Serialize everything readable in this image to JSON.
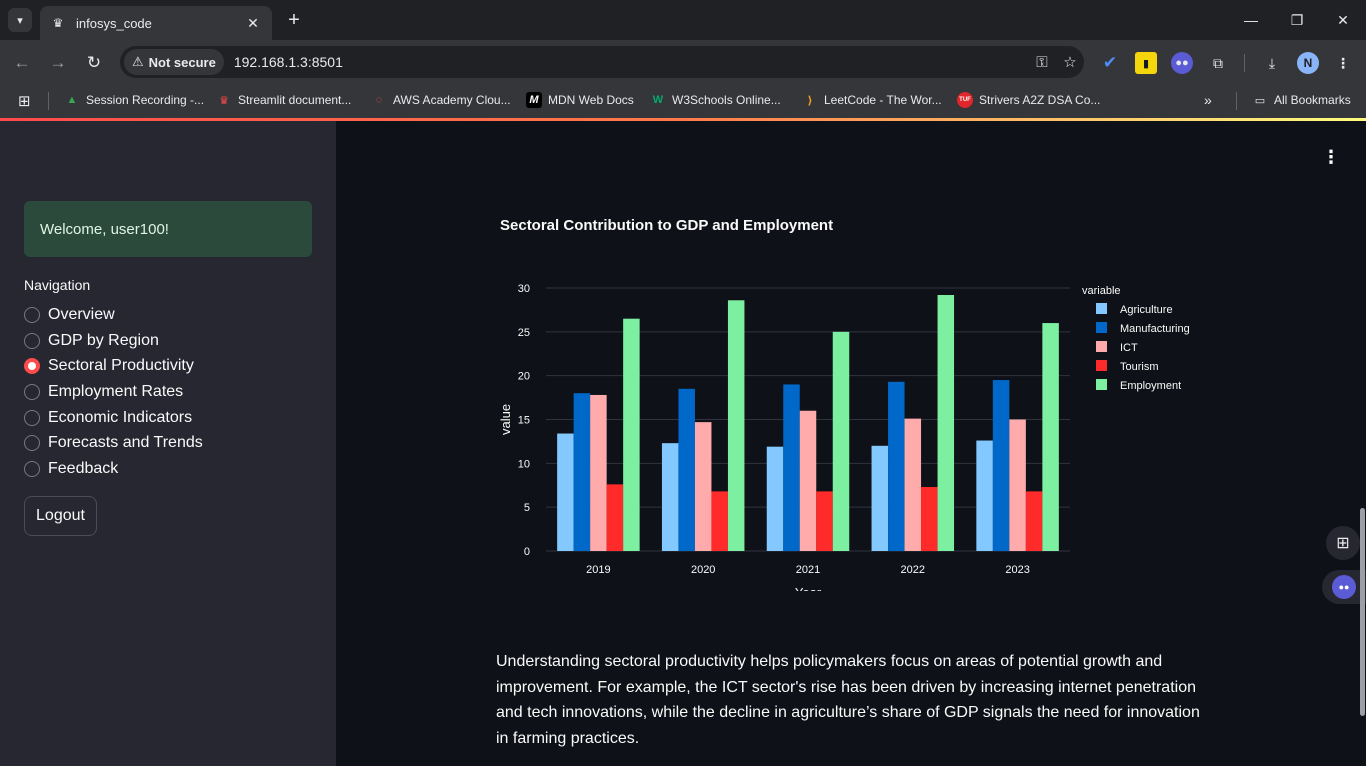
{
  "browser": {
    "tab_title": "infosys_code",
    "url_security": "Not secure",
    "url": "192.168.1.3:8501",
    "profile_initial": "N",
    "bookmarks": [
      {
        "label": "Session Recording -...",
        "icon": "drive-icon",
        "color": "#34a853"
      },
      {
        "label": "Streamlit document...",
        "icon": "streamlit-icon",
        "color": "#ff4b4b"
      },
      {
        "label": "AWS Academy Clou...",
        "icon": "aws-icon",
        "color": "#ff4b4b"
      },
      {
        "label": "MDN Web Docs",
        "icon": "mdn-icon",
        "color": "#ffffff"
      },
      {
        "label": "W3Schools Online...",
        "icon": "w3schools-icon",
        "color": "#04aa6d"
      },
      {
        "label": "LeetCode - The Wor...",
        "icon": "leetcode-icon",
        "color": "#ffa116"
      },
      {
        "label": "Strivers A2Z DSA Co...",
        "icon": "tuf-icon",
        "color": "#e0262b"
      }
    ],
    "all_bookmarks": "All Bookmarks"
  },
  "sidebar": {
    "welcome": "Welcome, user100!",
    "nav_title": "Navigation",
    "items": [
      {
        "label": "Overview",
        "selected": false
      },
      {
        "label": "GDP by Region",
        "selected": false
      },
      {
        "label": "Sectoral Productivity",
        "selected": true
      },
      {
        "label": "Employment Rates",
        "selected": false
      },
      {
        "label": "Economic Indicators",
        "selected": false
      },
      {
        "label": "Forecasts and Trends",
        "selected": false
      },
      {
        "label": "Feedback",
        "selected": false
      }
    ],
    "logout": "Logout"
  },
  "main": {
    "chart_title": "Sectoral Contribution to GDP and Employment",
    "description": "Understanding sectoral productivity helps policymakers focus on areas of potential growth and improvement. For example, the ICT sector's rise has been driven by increasing internet penetration and tech innovations, while the decline in agriculture’s share of GDP signals the need for innovation in farming practices."
  },
  "chart_data": {
    "type": "bar",
    "title": "Sectoral Contribution to GDP and Employment",
    "xlabel": "Year",
    "ylabel": "value",
    "legend_title": "variable",
    "legend_position": "right",
    "categories": [
      "2019",
      "2020",
      "2021",
      "2022",
      "2023"
    ],
    "ylim": [
      0,
      30
    ],
    "yticks": [
      0,
      5,
      10,
      15,
      20,
      25,
      30
    ],
    "grid": true,
    "series": [
      {
        "name": "Agriculture",
        "color": "#83c9ff",
        "values": [
          13.4,
          12.3,
          11.9,
          12.0,
          12.6
        ]
      },
      {
        "name": "Manufacturing",
        "color": "#0068c9",
        "values": [
          18.0,
          18.5,
          19.0,
          19.3,
          19.5
        ]
      },
      {
        "name": "ICT",
        "color": "#ffabab",
        "values": [
          17.8,
          14.7,
          16.0,
          15.1,
          15.0
        ]
      },
      {
        "name": "Tourism",
        "color": "#ff2b2b",
        "values": [
          7.6,
          6.8,
          6.8,
          7.3,
          6.8
        ]
      },
      {
        "name": "Employment",
        "color": "#7defa1",
        "values": [
          26.5,
          28.6,
          25.0,
          29.2,
          26.0
        ]
      }
    ]
  }
}
